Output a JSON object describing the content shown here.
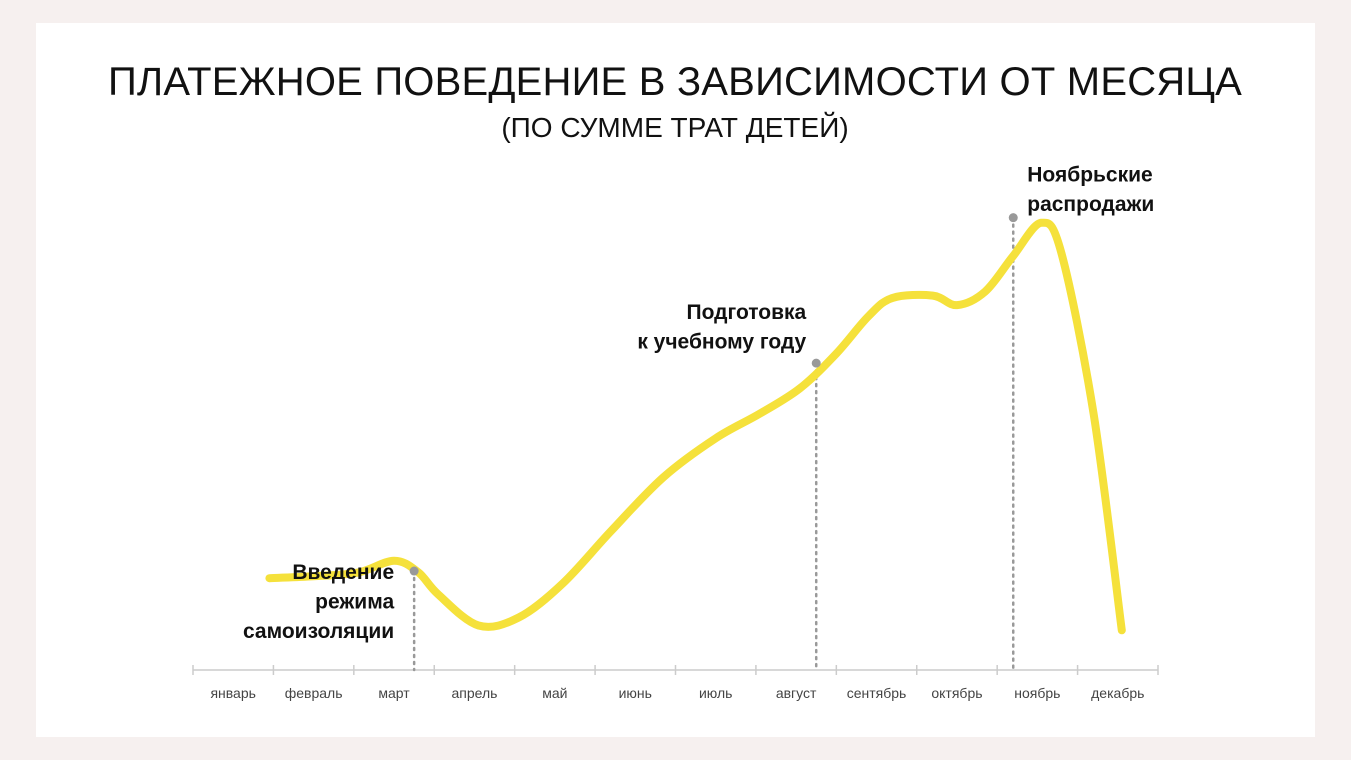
{
  "chart_data": {
    "type": "line",
    "title": "ПЛАТЕЖНОЕ ПОВЕДЕНИЕ В ЗАВИСИМОСТИ ОТ МЕСЯЦА",
    "subtitle": "(ПО СУММЕ ТРАТ ДЕТЕЙ)",
    "xlabel": "",
    "ylabel": "",
    "categories": [
      "январь",
      "февраль",
      "март",
      "апрель",
      "май",
      "июнь",
      "июль",
      "август",
      "сентябрь",
      "октябрь",
      "ноябрь",
      "декабрь"
    ],
    "series": [
      {
        "color": "#f5e13b",
        "points": [
          {
            "x": 0.45,
            "y": 23.1
          },
          {
            "x": 1.0,
            "y": 23.6
          },
          {
            "x": 1.55,
            "y": 24.5
          },
          {
            "x": 2.0,
            "y": 27.5
          },
          {
            "x": 2.3,
            "y": 24.6
          },
          {
            "x": 2.55,
            "y": 19.0
          },
          {
            "x": 3.05,
            "y": 11.2
          },
          {
            "x": 3.55,
            "y": 13.2
          },
          {
            "x": 4.1,
            "y": 21.8
          },
          {
            "x": 4.7,
            "y": 35.0
          },
          {
            "x": 5.35,
            "y": 48.5
          },
          {
            "x": 6.0,
            "y": 58.3
          },
          {
            "x": 6.55,
            "y": 64.5
          },
          {
            "x": 7.05,
            "y": 70.9
          },
          {
            "x": 7.5,
            "y": 79.6
          },
          {
            "x": 7.9,
            "y": 89.0
          },
          {
            "x": 8.2,
            "y": 93.6
          },
          {
            "x": 8.7,
            "y": 94.2
          },
          {
            "x": 9.0,
            "y": 91.8
          },
          {
            "x": 9.35,
            "y": 95.2
          },
          {
            "x": 9.7,
            "y": 104.2
          },
          {
            "x": 10.05,
            "y": 112.5
          },
          {
            "x": 10.3,
            "y": 104.8
          },
          {
            "x": 10.7,
            "y": 64.3
          },
          {
            "x": 11.05,
            "y": 10.0
          }
        ]
      }
    ],
    "annotations": [
      {
        "text": [
          "Введение",
          "режима",
          "самоизоляции"
        ],
        "x": 2.25,
        "y": 24.9
      },
      {
        "text": [
          "Подготовка",
          "к учебному году"
        ],
        "x": 7.25,
        "y": 77.2
      },
      {
        "text": [
          "Ноябрьские",
          "распродажи"
        ],
        "x": 9.7,
        "y": 113.8
      }
    ],
    "xlim": [
      -0.5,
      11.5
    ],
    "ylim": [
      0,
      120
    ],
    "grid": false,
    "legend": "none",
    "colors": {
      "line": "#f5e13b",
      "marker": "#999999",
      "axis": "#cccccc",
      "text": "#111111",
      "tick_text": "#444444",
      "card": "#ffffff",
      "background": "#f6f0ef"
    }
  }
}
